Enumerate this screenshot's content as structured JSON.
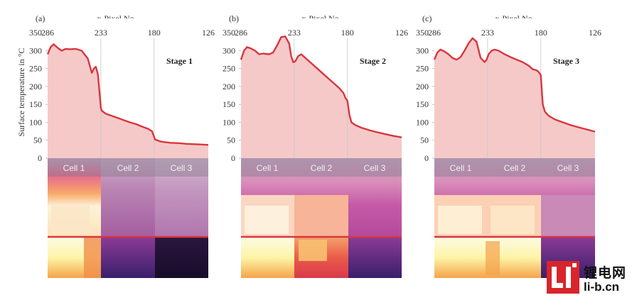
{
  "figure": {
    "x_axis_title": "x-Pixel No.",
    "y_axis_title": "Surface temperature in °C"
  },
  "watermark": {
    "logo_text": "锂电网",
    "url": "li-b.cn"
  },
  "chart_data": [
    {
      "type": "area",
      "panel": "(a)",
      "stage_label": "Stage 1",
      "xlabel": "x-Pixel No.",
      "ylabel": "Surface temperature in °C",
      "x_ticks": [
        286,
        233,
        180,
        126
      ],
      "y_ticks": [
        0,
        50,
        100,
        150,
        200,
        250,
        300,
        350
      ],
      "xlim": [
        286,
        126
      ],
      "ylim": [
        0,
        390
      ],
      "cell_boundaries": [
        233,
        180
      ],
      "cells": [
        "Cell 1",
        "Cell 2",
        "Cell 3"
      ],
      "colors": {
        "line": "#d9363e",
        "fill": "#f6c9c9"
      },
      "x": [
        286,
        283,
        280,
        276,
        272,
        268,
        264,
        258,
        252,
        246,
        242,
        240,
        238,
        236,
        234,
        233,
        232,
        228,
        222,
        216,
        210,
        204,
        198,
        192,
        186,
        182,
        180,
        179,
        177,
        174,
        170,
        164,
        156,
        148,
        140,
        132,
        126
      ],
      "y": [
        290,
        310,
        318,
        308,
        300,
        305,
        304,
        305,
        300,
        278,
        238,
        250,
        255,
        235,
        175,
        140,
        132,
        124,
        118,
        112,
        106,
        100,
        95,
        88,
        82,
        75,
        60,
        52,
        50,
        47,
        45,
        43,
        42,
        40,
        39,
        38,
        37
      ]
    },
    {
      "type": "area",
      "panel": "(b)",
      "stage_label": "Stage 2",
      "xlabel": "x-Pixel No.",
      "ylabel": "Surface temperature in °C",
      "x_ticks": [
        286,
        233,
        180,
        126
      ],
      "y_ticks": [
        0,
        50,
        100,
        150,
        200,
        250,
        300,
        350
      ],
      "xlim": [
        286,
        126
      ],
      "ylim": [
        0,
        390
      ],
      "cell_boundaries": [
        233,
        180
      ],
      "cells": [
        "Cell 1",
        "Cell 2",
        "Cell 3"
      ],
      "colors": {
        "line": "#d9363e",
        "fill": "#f6c9c9"
      },
      "x": [
        286,
        283,
        280,
        276,
        272,
        268,
        264,
        258,
        254,
        250,
        246,
        242,
        238,
        236,
        234,
        232,
        229,
        226,
        222,
        216,
        210,
        204,
        198,
        192,
        188,
        184,
        182,
        180,
        178,
        176,
        172,
        166,
        158,
        150,
        142,
        134,
        126
      ],
      "y": [
        275,
        300,
        310,
        306,
        300,
        290,
        292,
        290,
        295,
        315,
        338,
        340,
        320,
        285,
        268,
        270,
        285,
        290,
        280,
        265,
        250,
        235,
        220,
        205,
        195,
        182,
        168,
        160,
        120,
        100,
        92,
        85,
        78,
        72,
        67,
        62,
        58
      ]
    },
    {
      "type": "area",
      "panel": "(c)",
      "stage_label": "Stage 3",
      "xlabel": "x-Pixel No.",
      "ylabel": "Surface temperature in °C",
      "x_ticks": [
        286,
        233,
        180,
        126
      ],
      "y_ticks": [
        0,
        50,
        100,
        150,
        200,
        250,
        300,
        350
      ],
      "xlim": [
        286,
        126
      ],
      "ylim": [
        0,
        390
      ],
      "cell_boundaries": [
        233,
        180
      ],
      "cells": [
        "Cell 1",
        "Cell 2",
        "Cell 3"
      ],
      "colors": {
        "line": "#d9363e",
        "fill": "#f6c9c9"
      },
      "x": [
        286,
        283,
        280,
        276,
        272,
        268,
        264,
        260,
        256,
        252,
        248,
        244,
        240,
        236,
        234,
        232,
        229,
        226,
        222,
        216,
        210,
        204,
        198,
        192,
        188,
        184,
        182,
        180,
        178,
        176,
        172,
        166,
        158,
        150,
        142,
        134,
        126
      ],
      "y": [
        275,
        295,
        303,
        298,
        290,
        280,
        275,
        282,
        300,
        320,
        335,
        325,
        280,
        268,
        275,
        290,
        300,
        303,
        300,
        290,
        282,
        275,
        268,
        258,
        248,
        245,
        240,
        232,
        150,
        130,
        118,
        108,
        100,
        92,
        86,
        80,
        74
      ]
    }
  ]
}
